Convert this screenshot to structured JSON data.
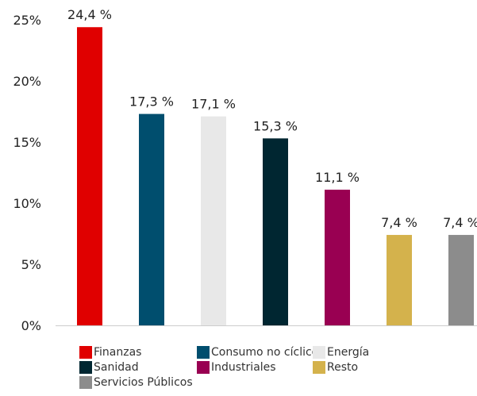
{
  "chart_data": {
    "type": "bar",
    "categories": [
      "Finanzas",
      "Consumo no cíclico",
      "Energía",
      "Sanidad",
      "Industriales",
      "Resto",
      "Servicios Públicos"
    ],
    "values": [
      24.4,
      17.3,
      17.1,
      15.3,
      11.1,
      7.4,
      7.4
    ],
    "data_labels": [
      "24,4 %",
      "17,3 %",
      "17,1 %",
      "15,3 %",
      "11,1 %",
      "7,4 %",
      "7,4 %"
    ],
    "colors": [
      "#e00000",
      "#004e6e",
      "#e8e8e8",
      "#002631",
      "#990052",
      "#d4b24c",
      "#8c8c8c"
    ],
    "ylim": [
      0,
      25
    ],
    "yticks": [
      0,
      5,
      10,
      15,
      20,
      25
    ],
    "ytick_labels": [
      "0%",
      "5%",
      "10%",
      "15%",
      "20%",
      "25%"
    ],
    "title": "",
    "xlabel": "",
    "ylabel": "",
    "grid": false,
    "legend_position": "bottom"
  }
}
